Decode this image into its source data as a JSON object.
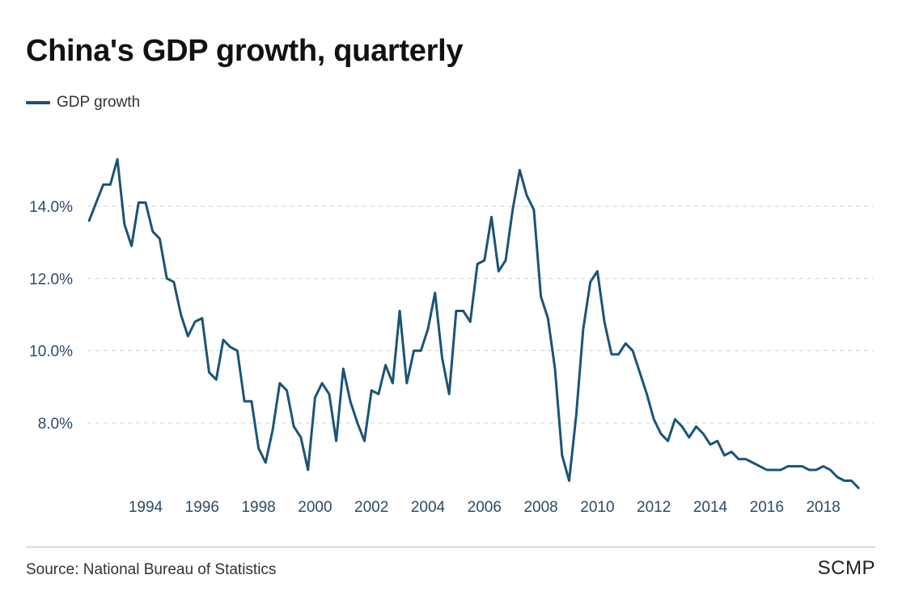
{
  "header": {
    "title": "China's GDP growth, quarterly"
  },
  "footer": {
    "source": "Source: National Bureau of Statistics",
    "brand": "SCMP"
  },
  "chart_data": {
    "type": "line",
    "title": "China's GDP growth, quarterly",
    "xlabel": "",
    "ylabel": "",
    "ylim": [
      6.0,
      16.0
    ],
    "xlim": [
      1992.0,
      2019.5
    ],
    "yticks": [
      8.0,
      10.0,
      12.0,
      14.0
    ],
    "ytick_labels": [
      "8.0%",
      "10.0%",
      "12.0%",
      "14.0%"
    ],
    "xticks": [
      1994,
      1996,
      1998,
      2000,
      2002,
      2004,
      2006,
      2008,
      2010,
      2012,
      2014,
      2016,
      2018
    ],
    "xtick_labels": [
      "1994",
      "1996",
      "1998",
      "2000",
      "2002",
      "2004",
      "2006",
      "2008",
      "2010",
      "2012",
      "2014",
      "2016",
      "2018"
    ],
    "grid": "horizontal-dashed",
    "legend": "top-left",
    "color": "#1b5478",
    "x_start": 1992.0,
    "x_step": 0.25,
    "series": [
      {
        "name": "GDP growth",
        "values": [
          13.6,
          14.1,
          14.6,
          14.6,
          15.3,
          13.5,
          12.9,
          14.1,
          14.1,
          13.3,
          13.1,
          12.0,
          11.9,
          11.0,
          10.4,
          10.8,
          10.9,
          9.4,
          9.2,
          10.3,
          10.1,
          10.0,
          8.6,
          8.6,
          7.3,
          6.9,
          7.8,
          9.1,
          8.9,
          7.9,
          7.6,
          6.7,
          8.7,
          9.1,
          8.8,
          7.5,
          9.5,
          8.6,
          8.0,
          7.5,
          8.9,
          8.8,
          9.6,
          9.1,
          11.1,
          9.1,
          10.0,
          10.0,
          10.6,
          11.6,
          9.8,
          8.8,
          11.1,
          11.1,
          10.8,
          12.4,
          12.5,
          13.7,
          12.2,
          12.5,
          13.9,
          15.0,
          14.3,
          13.9,
          11.5,
          10.9,
          9.5,
          7.1,
          6.4,
          8.2,
          10.6,
          11.9,
          12.2,
          10.8,
          9.9,
          9.9,
          10.2,
          10.0,
          9.4,
          8.8,
          8.1,
          7.7,
          7.5,
          8.1,
          7.9,
          7.6,
          7.9,
          7.7,
          7.4,
          7.5,
          7.1,
          7.2,
          7.0,
          7.0,
          6.9,
          6.8,
          6.7,
          6.7,
          6.7,
          6.8,
          6.8,
          6.8,
          6.7,
          6.7,
          6.8,
          6.7,
          6.5,
          6.4,
          6.4,
          6.2
        ]
      }
    ]
  }
}
